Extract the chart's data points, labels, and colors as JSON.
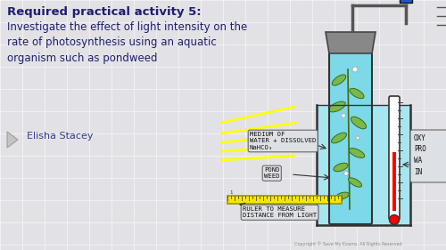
{
  "bg_color": "#e2e2e6",
  "title_bold": "Required practical activity 5:",
  "title_normal": "Investigate the effect of light intensity on the\nrate of photosynthesis using an aquatic\norganism such as pondweed",
  "author": "Elisha Stacey",
  "title_color": "#1e1e6e",
  "author_color": "#3a3a8a",
  "copyright": "Copyright © Save My Exams. All Rights Reserved",
  "label_medium": "MEDIUM OF\nWATER + DISSOLVED\nNaHCO₃",
  "label_pondweed": "POND\nWEED",
  "label_ruler": "RULER TO MEASURE\nDISTANCE FROM LIGHT",
  "label_oxygen": "OXY\nPRO\nWA\nIN",
  "water_color": "#7dd9e8",
  "beaker_water_color": "#a8e6ef",
  "ruler_color": "#f5e800",
  "label_bg": "#dde0e4",
  "label_border": "#666666",
  "light_color": "#ffff00",
  "funnel_color": "#888888",
  "blue_box_color": "#2255cc",
  "grid_color": "#ffffff",
  "tube_line_color": "#444444",
  "leaf_color": "#7ab84a",
  "leaf_edge": "#3a6a1a"
}
